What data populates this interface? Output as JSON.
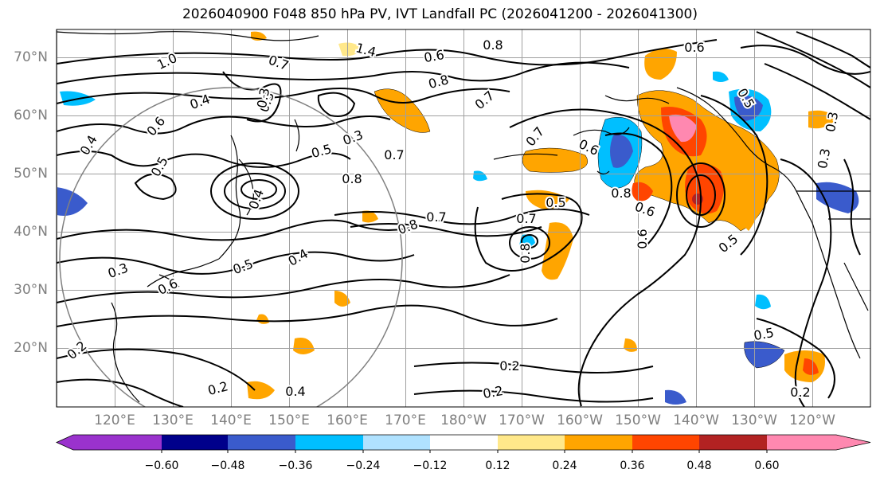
{
  "title": "2026040900 F048 850 hPa PV, IVT Landfall PC (2026041200 - 2026041300)",
  "lat_ticks": [
    "70°N",
    "60°N",
    "50°N",
    "40°N",
    "30°N",
    "20°N"
  ],
  "lon_ticks": [
    "120°E",
    "130°E",
    "140°E",
    "150°E",
    "160°E",
    "170°E",
    "180°W",
    "170°W",
    "160°W",
    "150°W",
    "140°W",
    "130°W",
    "120°W"
  ],
  "colorbar": {
    "ticks": [
      "−0.60",
      "−0.48",
      "−0.36",
      "−0.24",
      "−0.12",
      "0.12",
      "0.24",
      "0.36",
      "0.48",
      "0.60"
    ],
    "colors": [
      "#9a32cd",
      "#00008b",
      "#3a5bcc",
      "#00bfff",
      "#b0e2ff",
      "#ffffff",
      "#ffe88a",
      "#ffa500",
      "#ff4500",
      "#b22222",
      "#ff88b0",
      "#ff88b0"
    ],
    "low_color": "#9a32cd",
    "high_color": "#ff88b0"
  },
  "contour_labels": [
    {
      "text": "1.0"
    },
    {
      "text": "0.7"
    },
    {
      "text": "1.4"
    },
    {
      "text": "0.6"
    },
    {
      "text": "0.8"
    },
    {
      "text": "0.6"
    },
    {
      "text": "0.4"
    },
    {
      "text": "0.3"
    },
    {
      "text": "0.8"
    },
    {
      "text": "0.7"
    },
    {
      "text": "0.6"
    },
    {
      "text": "0.4"
    },
    {
      "text": "0.5"
    },
    {
      "text": "0.5"
    },
    {
      "text": "0.3"
    },
    {
      "text": "0.7"
    },
    {
      "text": "0.8"
    },
    {
      "text": "0.6"
    },
    {
      "text": "0.7"
    },
    {
      "text": "0.5"
    },
    {
      "text": "0.8"
    },
    {
      "text": "0.7"
    },
    {
      "text": "0.8"
    },
    {
      "text": "0.7"
    },
    {
      "text": "0.3"
    },
    {
      "text": "0.4"
    },
    {
      "text": "0.5"
    },
    {
      "text": "0.6"
    },
    {
      "text": "0.4"
    },
    {
      "text": "0.3"
    },
    {
      "text": "0.5"
    },
    {
      "text": "0.6"
    },
    {
      "text": "0.5"
    },
    {
      "text": "0.2"
    },
    {
      "text": "0.2"
    },
    {
      "text": "0.2"
    },
    {
      "text": "0.4"
    },
    {
      "text": "0.2"
    },
    {
      "text": "0.2"
    },
    {
      "text": "0.3"
    },
    {
      "text": "0.8"
    },
    {
      "text": "0.5"
    },
    {
      "text": "0.6"
    },
    {
      "text": "0.3"
    }
  ]
}
